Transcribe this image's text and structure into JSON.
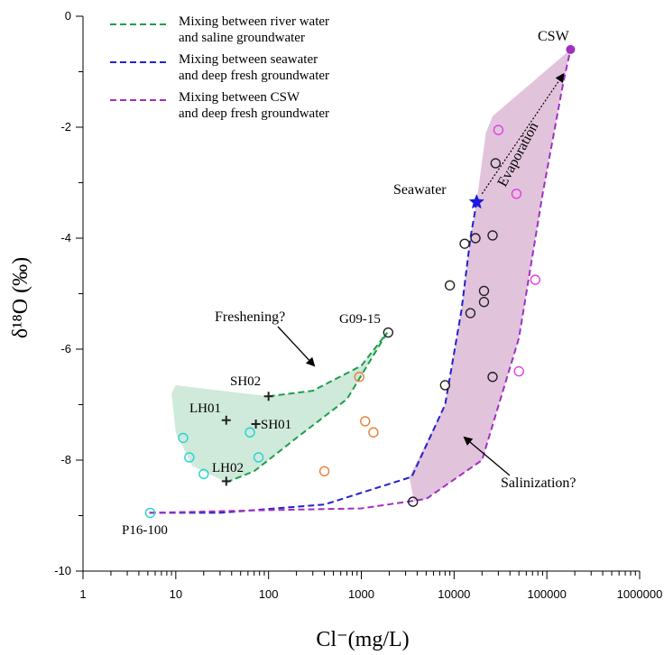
{
  "chart_data": {
    "type": "scatter",
    "xlabel": "Cl⁻(mg/L)",
    "ylabel": "δ¹⁸O (‰)",
    "x_scale": "log",
    "xlim": [
      1,
      1000000
    ],
    "ylim": [
      -10,
      0
    ],
    "x_ticks": [
      1,
      10,
      100,
      1000,
      10000,
      100000,
      1000000
    ],
    "x_tick_labels": [
      "1",
      "10",
      "100",
      "1000",
      "10000",
      "100000",
      "1000000"
    ],
    "y_ticks": [
      0,
      -2,
      -4,
      -6,
      -8,
      -10
    ],
    "y_tick_labels": [
      "0",
      "-2",
      "-4",
      "-6",
      "-8",
      "-10"
    ],
    "legend": {
      "placement": "top-left",
      "entries": [
        {
          "lines": [
            "Mixing between river water",
            "and saline groundwater"
          ],
          "color": "#1e9e4a"
        },
        {
          "lines": [
            "Mixing between seawater",
            "and deep fresh groundwater"
          ],
          "color": "#2222cc"
        },
        {
          "lines": [
            "Mixing between CSW",
            "and deep fresh groundwater"
          ],
          "color": "#a030c0"
        }
      ]
    },
    "colors": {
      "green_area": "#cfe9da",
      "pink_area": "#e2c3dc",
      "green_line": "#1e9e4a",
      "blue_line": "#2222cc",
      "purple_line": "#a030c0",
      "cyan": "#22d3d3",
      "orange": "#e8803a",
      "magenta": "#e040e0",
      "black": "#222222"
    },
    "mixing_lines": [
      {
        "id": "river-saline",
        "color": "#1e9e4a",
        "points": [
          [
            35,
            -8.4
          ],
          [
            70,
            -8.2
          ],
          [
            200,
            -7.6
          ],
          [
            700,
            -6.9
          ],
          [
            1900,
            -5.7
          ]
        ]
      },
      {
        "id": "river-saline-upper",
        "color": "#1e9e4a",
        "points": [
          [
            100,
            -6.85
          ],
          [
            300,
            -6.75
          ],
          [
            1000,
            -6.3
          ],
          [
            1900,
            -5.7
          ]
        ]
      },
      {
        "id": "seawater-deep",
        "color": "#2222cc",
        "points": [
          [
            5.2,
            -8.95
          ],
          [
            30,
            -8.95
          ],
          [
            400,
            -8.8
          ],
          [
            3500,
            -8.3
          ],
          [
            8000,
            -7.0
          ],
          [
            12000,
            -5.3
          ],
          [
            15000,
            -4.0
          ],
          [
            17500,
            -3.35
          ]
        ]
      },
      {
        "id": "csw-deep",
        "color": "#a030c0",
        "points": [
          [
            5.2,
            -8.95
          ],
          [
            100,
            -8.9
          ],
          [
            1000,
            -8.87
          ],
          [
            5000,
            -8.7
          ],
          [
            20000,
            -8.0
          ],
          [
            50000,
            -5.8
          ],
          [
            90000,
            -3.2
          ],
          [
            150000,
            -1.2
          ],
          [
            180000,
            -0.6
          ]
        ]
      }
    ],
    "green_area_points": [
      [
        35,
        -8.4
      ],
      [
        15,
        -8.1
      ],
      [
        10,
        -7.5
      ],
      [
        9,
        -6.8
      ],
      [
        10,
        -6.65
      ],
      [
        100,
        -6.85
      ],
      [
        300,
        -6.75
      ],
      [
        1000,
        -6.3
      ],
      [
        1900,
        -5.7
      ],
      [
        700,
        -6.9
      ],
      [
        200,
        -7.6
      ],
      [
        70,
        -8.2
      ]
    ],
    "pink_area_points": [
      [
        3700,
        -8.75
      ],
      [
        3300,
        -8.3
      ],
      [
        8000,
        -7.0
      ],
      [
        12000,
        -5.3
      ],
      [
        15000,
        -4.0
      ],
      [
        17500,
        -3.35
      ],
      [
        22000,
        -2.1
      ],
      [
        26000,
        -1.8
      ],
      [
        180000,
        -0.6
      ],
      [
        150000,
        -1.2
      ],
      [
        90000,
        -3.2
      ],
      [
        50000,
        -5.8
      ],
      [
        20000,
        -8.0
      ],
      [
        5000,
        -8.7
      ]
    ],
    "evaporation_arrow": {
      "from": [
        20000,
        -3.2
      ],
      "to": [
        150000,
        -1.05
      ]
    },
    "series": [
      {
        "name": "",
        "marker": "circle-open",
        "color": "#22d3d3",
        "points": [
          [
            12,
            -7.6
          ],
          [
            14,
            -7.95
          ],
          [
            20,
            -8.25
          ],
          [
            63,
            -7.5
          ],
          [
            78,
            -7.95
          ],
          [
            5.3,
            -8.95
          ]
        ]
      },
      {
        "name": "",
        "marker": "circle-open",
        "color": "#e8803a",
        "points": [
          [
            950,
            -6.5
          ],
          [
            1100,
            -7.3
          ],
          [
            1350,
            -7.5
          ],
          [
            400,
            -8.2
          ]
        ]
      },
      {
        "name": "",
        "marker": "circle-open",
        "color": "#e040e0",
        "points": [
          [
            30000,
            -2.05
          ],
          [
            47000,
            -3.2
          ],
          [
            75000,
            -4.75
          ],
          [
            50000,
            -6.4
          ]
        ]
      },
      {
        "name": "",
        "marker": "circle-open",
        "color": "#222222",
        "points": [
          [
            1950,
            -5.7
          ],
          [
            28000,
            -2.65
          ],
          [
            26000,
            -3.95
          ],
          [
            17000,
            -4.0
          ],
          [
            13000,
            -4.1
          ],
          [
            9000,
            -4.85
          ],
          [
            21000,
            -4.95
          ],
          [
            21000,
            -5.15
          ],
          [
            15000,
            -5.35
          ],
          [
            26000,
            -6.5
          ],
          [
            8000,
            -6.65
          ],
          [
            3600,
            -8.75
          ]
        ]
      },
      {
        "name": "",
        "marker": "plus",
        "color": "#222222",
        "points": [
          [
            100,
            -6.85
          ],
          [
            35,
            -7.28
          ],
          [
            73,
            -7.35
          ],
          [
            35,
            -8.38
          ]
        ]
      },
      {
        "name": "",
        "marker": "star",
        "color": "#1a1ae0",
        "points": [
          [
            17500,
            -3.35
          ]
        ]
      },
      {
        "name": "",
        "marker": "dot",
        "color": "#a030c0",
        "points": [
          [
            180000,
            -0.6
          ]
        ]
      }
    ],
    "annotations": {
      "csw": {
        "text": "CSW",
        "x": 180000,
        "y": -0.6
      },
      "seawater": {
        "text": "Seawater",
        "x": 17500,
        "y": -3.35
      },
      "evaporation": {
        "text": "Evaporation"
      },
      "freshening": {
        "text": "Freshening?"
      },
      "salinization": {
        "text": "Salinization?"
      },
      "g0915": {
        "text": "G09-15"
      },
      "sh02": {
        "text": "SH02"
      },
      "lh01": {
        "text": "LH01"
      },
      "sh01": {
        "text": "SH01"
      },
      "lh02": {
        "text": "LH02"
      },
      "p16100": {
        "text": "P16-100"
      }
    }
  }
}
